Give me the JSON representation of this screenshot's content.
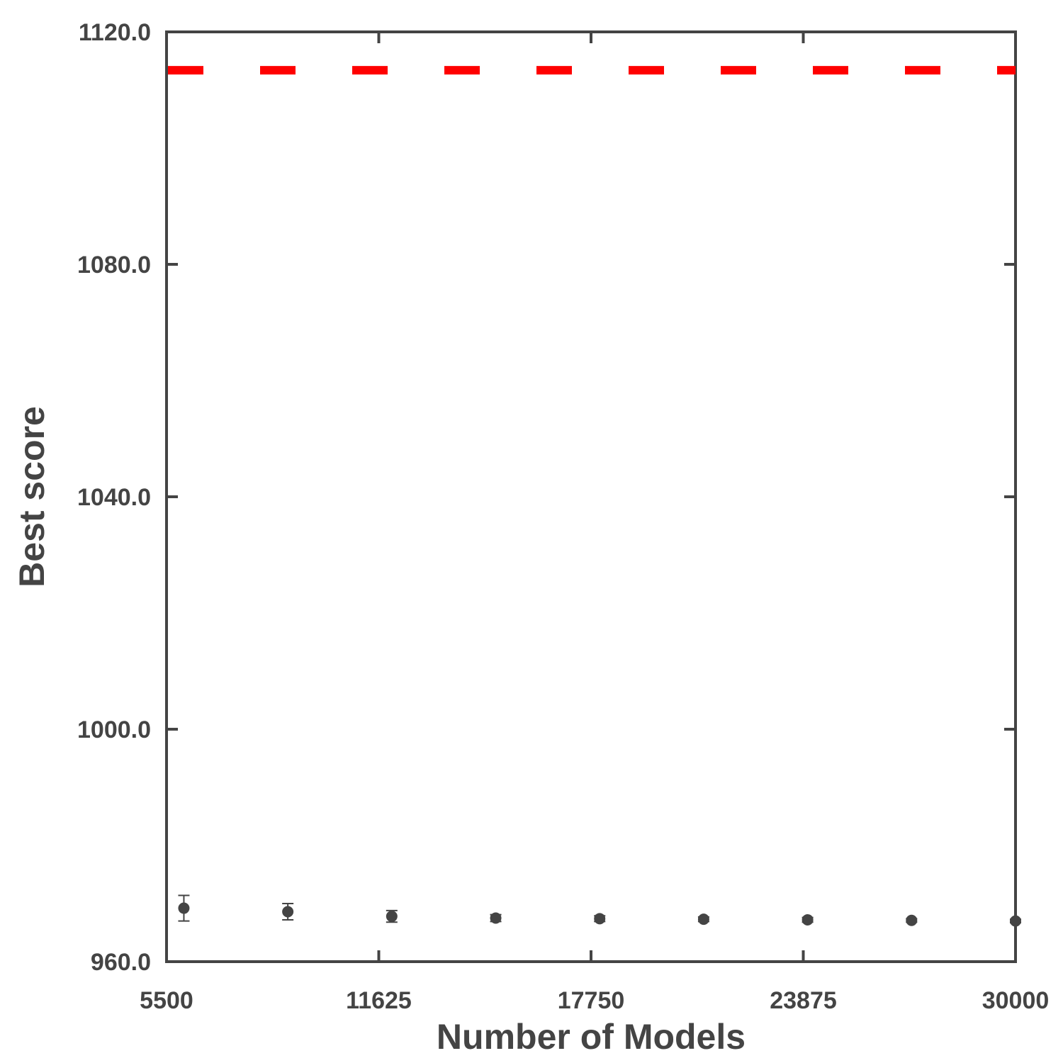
{
  "chart_data": {
    "type": "scatter",
    "title": "",
    "xlabel": "Number of Models",
    "ylabel": "Best score",
    "xlim": [
      5500,
      30000
    ],
    "ylim": [
      960,
      1120
    ],
    "x_ticks": [
      5500,
      11625,
      17750,
      23875,
      30000
    ],
    "x_tick_labels": [
      "5500",
      "11625",
      "17750",
      "23875",
      "30000"
    ],
    "y_ticks": [
      960,
      1000,
      1040,
      1080,
      1120
    ],
    "y_tick_labels": [
      "960.0",
      "1000.0",
      "1040.0",
      "1080.0",
      "1120.0"
    ],
    "grid": false,
    "legend": false,
    "series": [
      {
        "color": "#444444",
        "points": [
          {
            "x": 6000,
            "y": 969.2,
            "err": 2.2
          },
          {
            "x": 9000,
            "y": 968.6,
            "err": 1.4
          },
          {
            "x": 12000,
            "y": 967.8,
            "err": 1.0
          },
          {
            "x": 15000,
            "y": 967.5,
            "err": 0.6
          },
          {
            "x": 18000,
            "y": 967.4,
            "err": 0.5
          },
          {
            "x": 21000,
            "y": 967.3,
            "err": 0.4
          },
          {
            "x": 24000,
            "y": 967.2,
            "err": 0.4
          },
          {
            "x": 27000,
            "y": 967.1,
            "err": 0.3
          },
          {
            "x": 30000,
            "y": 967.0,
            "err": 0.3
          }
        ]
      }
    ],
    "reference_lines": [
      {
        "y": 1113.4,
        "color": "#ff0000",
        "style": "dashed"
      }
    ]
  }
}
